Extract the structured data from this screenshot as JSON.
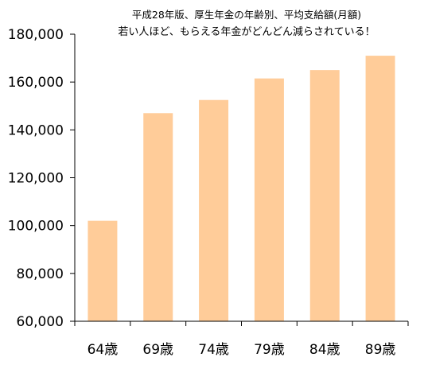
{
  "chart_data": {
    "type": "bar",
    "title_line1": "平成28年版、厚生年金の年齢別、平均支給額(月額)",
    "title_line2": "若い人ほど、もらえる年金がどんどん減らされている！",
    "categories": [
      "64歳",
      "69歳",
      "74歳",
      "79歳",
      "84歳",
      "89歳"
    ],
    "values": [
      102000,
      147000,
      152500,
      161500,
      165000,
      171000
    ],
    "ylim": [
      60000,
      180000
    ],
    "yticks": [
      60000,
      80000,
      100000,
      120000,
      140000,
      160000,
      180000
    ],
    "ytick_labels": [
      "60,000",
      "80,000",
      "100,000",
      "120,000",
      "140,000",
      "160,000",
      "180,000"
    ],
    "xlabel": "",
    "ylabel": "",
    "grid": false,
    "legend": "none",
    "colors": {
      "bar": "#FFCC99",
      "axis": "#000000",
      "background": "#FFFFFF"
    }
  }
}
